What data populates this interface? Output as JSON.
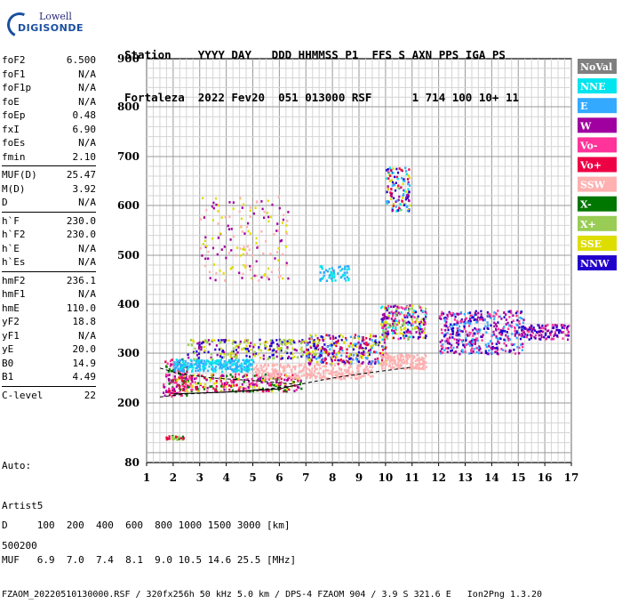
{
  "logo": {
    "line1": "Lowell",
    "line2": "DIGISONDE"
  },
  "header": {
    "line1": "Station    YYYY DAY   DDD HHMMSS P1  FFS S AXN PPS IGA PS",
    "line2": "Fortaleza  2022 Fev20  051 013000 RSF      1 714 100 10+ 11"
  },
  "params": [
    {
      "group": [
        [
          "foF2",
          "6.500"
        ],
        [
          "foF1",
          "N/A"
        ],
        [
          "foF1p",
          "N/A"
        ],
        [
          "foE",
          "N/A"
        ],
        [
          "foEp",
          "0.48"
        ],
        [
          "fxI",
          "6.90"
        ],
        [
          "foEs",
          "N/A"
        ],
        [
          "fmin",
          "2.10"
        ]
      ]
    },
    {
      "group": [
        [
          "MUF(D)",
          "25.47"
        ],
        [
          "M(D)",
          "3.92"
        ],
        [
          "D",
          "N/A"
        ]
      ]
    },
    {
      "group": [
        [
          "h`F",
          "230.0"
        ],
        [
          "h`F2",
          "230.0"
        ],
        [
          "h`E",
          "N/A"
        ],
        [
          "h`Es",
          "N/A"
        ]
      ]
    },
    {
      "group": [
        [
          "hmF2",
          "236.1"
        ],
        [
          "hmF1",
          "N/A"
        ],
        [
          "hmE",
          "110.0"
        ],
        [
          "yF2",
          "18.8"
        ],
        [
          "yF1",
          "N/A"
        ],
        [
          "yE",
          "20.0"
        ],
        [
          "B0",
          "14.9"
        ],
        [
          "B1",
          "4.49"
        ]
      ]
    },
    {
      "group": [
        [
          "C-level",
          "22"
        ]
      ]
    }
  ],
  "auto": {
    "l1": "Auto:",
    "l2": "Artist5",
    "l3": "500200"
  },
  "footer": {
    "d_line": "D     100  200  400  600  800 1000 1500 3000 [km]",
    "muf_line": "MUF   6.9  7.0  7.4  8.1  9.0 10.5 14.6 25.5 [MHz]",
    "file_line": "FZAOM_20220510130000.RSF / 320fx256h 50 kHz 5.0 km / DPS-4 FZAOM 904 / 3.9 S 321.6 E   Ion2Png 1.3.20"
  },
  "chart_data": {
    "type": "scatter",
    "title": "",
    "xlabel": "",
    "ylabel": "",
    "xlim": [
      1,
      17
    ],
    "ylim": [
      80,
      900
    ],
    "x_ticks": [
      "1",
      "2",
      "3",
      "4",
      "5",
      "6",
      "7",
      "8",
      "9",
      "10",
      "11",
      "12",
      "13",
      "14",
      "15",
      "16",
      "17"
    ],
    "y_ticks": [
      "80",
      "200",
      "300",
      "400",
      "500",
      "600",
      "700",
      "800",
      "900"
    ],
    "legend": [
      {
        "name": "NoVal",
        "color": "#808080",
        "text": "#ffffff"
      },
      {
        "name": "NNE",
        "color": "#00e5ee",
        "text": "#ffffff"
      },
      {
        "name": "E",
        "color": "#33aaff",
        "text": "#ffffff"
      },
      {
        "name": "W",
        "color": "#a000a0",
        "text": "#ffffff"
      },
      {
        "name": "Vo-",
        "color": "#ff3399",
        "text": "#ffffff"
      },
      {
        "name": "Vo+",
        "color": "#ee0044",
        "text": "#ffffff"
      },
      {
        "name": "SSW",
        "color": "#ffb0b0",
        "text": "#ffffff"
      },
      {
        "name": "X-",
        "color": "#007700",
        "text": "#ffffff"
      },
      {
        "name": "X+",
        "color": "#99cc55",
        "text": "#ffffff"
      },
      {
        "name": "SSE",
        "color": "#dddd00",
        "text": "#ffffff"
      },
      {
        "name": "NNW",
        "color": "#2200cc",
        "text": "#ffffff"
      }
    ],
    "clusters": [
      {
        "x": [
          1.6,
          2.5
        ],
        "y": [
          215,
          290
        ],
        "colors": [
          "#ee0044",
          "#007700",
          "#ff3399",
          "#a000a0"
        ],
        "n": 120
      },
      {
        "x": [
          2.0,
          5.0
        ],
        "y": [
          265,
          290
        ],
        "colors": [
          "#33aaff",
          "#00e5ee"
        ],
        "n": 260
      },
      {
        "x": [
          2.0,
          6.8
        ],
        "y": [
          225,
          260
        ],
        "colors": [
          "#ee0044",
          "#ff3399",
          "#a000a0",
          "#007700",
          "#dddd00"
        ],
        "n": 300
      },
      {
        "x": [
          2.5,
          7.5
        ],
        "y": [
          290,
          330
        ],
        "colors": [
          "#dddd00",
          "#a000a0",
          "#2200cc",
          "#99cc55"
        ],
        "n": 260
      },
      {
        "x": [
          5.0,
          9.5
        ],
        "y": [
          250,
          280
        ],
        "colors": [
          "#ffb0b0"
        ],
        "n": 260
      },
      {
        "x": [
          7.0,
          10.0
        ],
        "y": [
          280,
          340
        ],
        "colors": [
          "#dddd00",
          "#33aaff",
          "#a000a0",
          "#2200cc",
          "#ee0044"
        ],
        "n": 300
      },
      {
        "x": [
          9.8,
          11.5
        ],
        "y": [
          270,
          300
        ],
        "colors": [
          "#ffb0b0"
        ],
        "n": 160
      },
      {
        "x": [
          9.8,
          11.5
        ],
        "y": [
          330,
          400
        ],
        "colors": [
          "#a000a0",
          "#2200cc",
          "#dddd00",
          "#00e5ee",
          "#99cc55",
          "#ff3399"
        ],
        "n": 260
      },
      {
        "x": [
          10.0,
          10.9
        ],
        "y": [
          590,
          680
        ],
        "colors": [
          "#33aaff",
          "#2200cc",
          "#a000a0",
          "#00e5ee",
          "#ee0044",
          "#dddd00"
        ],
        "n": 120
      },
      {
        "x": [
          12.0,
          15.2
        ],
        "y": [
          300,
          390
        ],
        "colors": [
          "#2200cc",
          "#a000a0",
          "#ff3399",
          "#33aaff"
        ],
        "n": 420
      },
      {
        "x": [
          15.0,
          16.9
        ],
        "y": [
          330,
          360
        ],
        "colors": [
          "#a000a0",
          "#ff3399",
          "#2200cc"
        ],
        "n": 120
      },
      {
        "x": [
          3.0,
          6.3
        ],
        "y": [
          450,
          620
        ],
        "colors": [
          "#dddd00",
          "#ffb0b0",
          "#a000a0"
        ],
        "n": 160
      },
      {
        "x": [
          7.5,
          8.6
        ],
        "y": [
          450,
          480
        ],
        "colors": [
          "#00e5ee",
          "#33aaff"
        ],
        "n": 60
      },
      {
        "x": [
          1.7,
          2.4
        ],
        "y": [
          128,
          136
        ],
        "colors": [
          "#ee0044",
          "#007700",
          "#99cc55"
        ],
        "n": 30
      }
    ],
    "trace_points": [
      [
        1.5,
        212
      ],
      [
        2.5,
        218
      ],
      [
        4,
        222
      ],
      [
        5.5,
        228
      ],
      [
        6.5,
        234
      ],
      [
        7.2,
        242
      ],
      [
        8,
        250
      ],
      [
        9,
        258
      ],
      [
        10,
        265
      ],
      [
        11,
        272
      ]
    ]
  }
}
